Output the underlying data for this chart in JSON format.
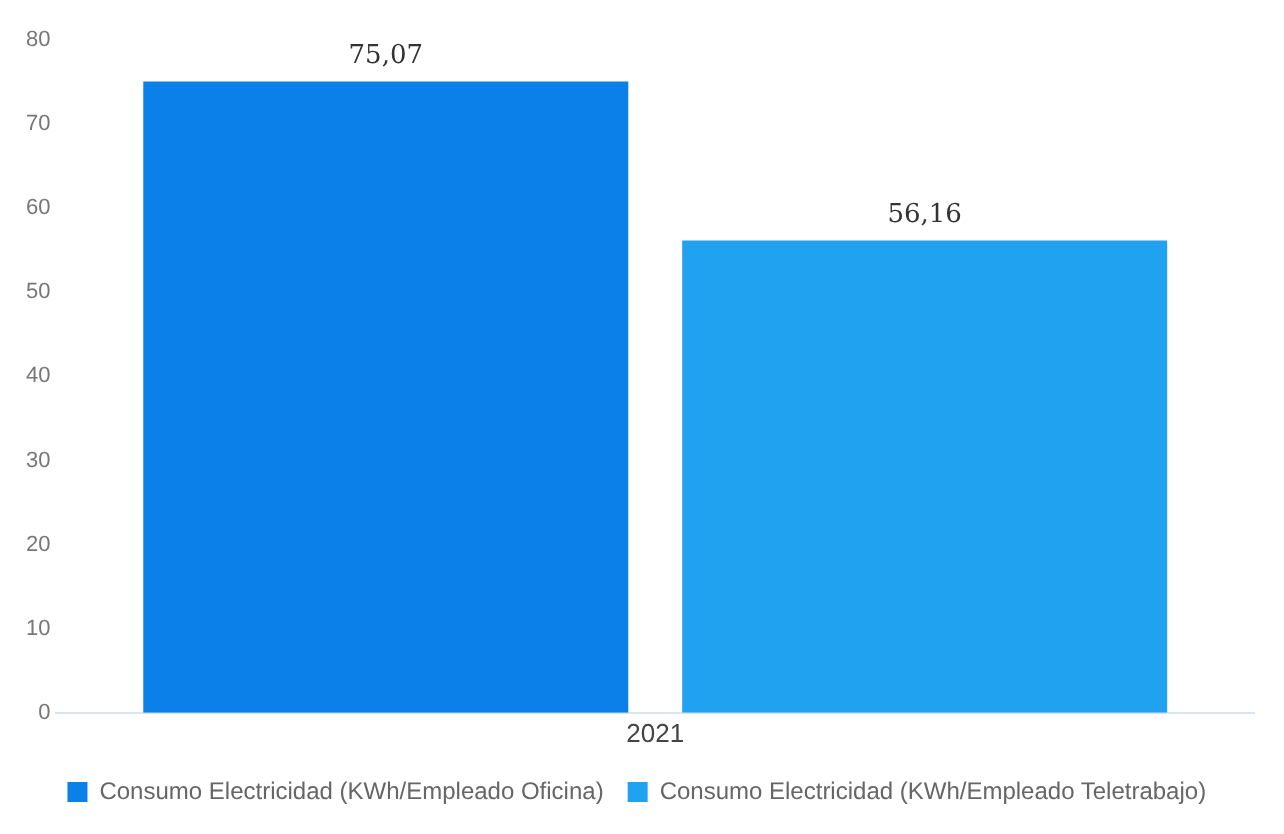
{
  "chart_data": {
    "type": "bar",
    "categories": [
      "2021"
    ],
    "series": [
      {
        "name": "Consumo Electricidad (KWh/Empleado Oficina)",
        "color": "#0a80e8",
        "values": [
          75.07
        ],
        "value_labels": [
          "75,07"
        ]
      },
      {
        "name": "Consumo Electricidad (KWh/Empleado Teletrabajo)",
        "color": "#20a2f0",
        "values": [
          56.16
        ],
        "value_labels": [
          "56,16"
        ]
      }
    ],
    "ylim": [
      0,
      80
    ],
    "yticks": [
      0,
      10,
      20,
      30,
      40,
      50,
      60,
      70,
      80
    ],
    "grid": false,
    "legend": "bottom"
  }
}
